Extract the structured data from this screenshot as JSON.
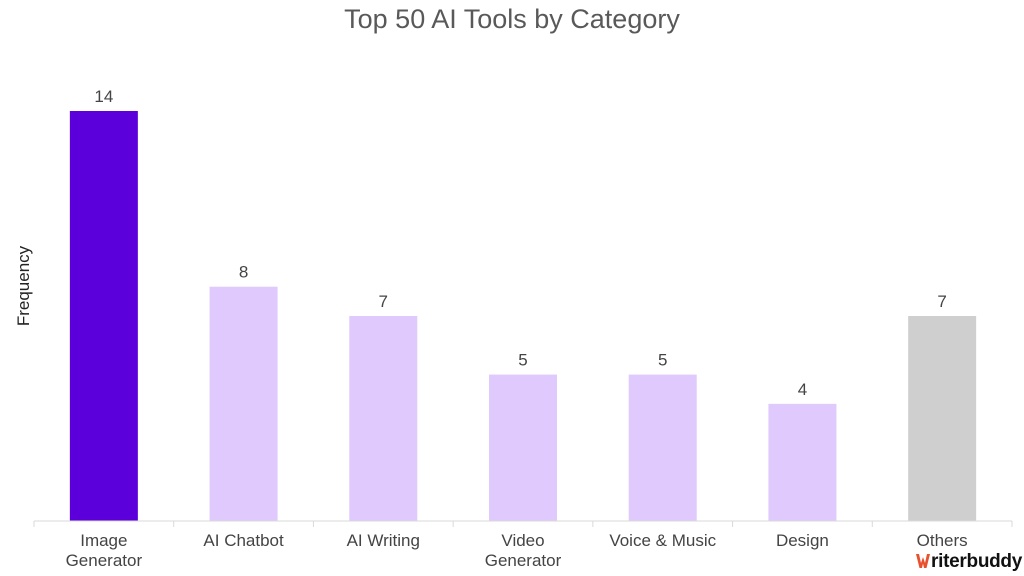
{
  "chart_data": {
    "type": "bar",
    "title": "Top 50 AI Tools by Category",
    "ylabel": "Frequency",
    "xlabel": "",
    "categories": [
      [
        "Image",
        "Generator"
      ],
      [
        "AI Chatbot"
      ],
      [
        "AI Writing"
      ],
      [
        "Video",
        "Generator"
      ],
      [
        "Voice & Music"
      ],
      [
        "Design"
      ],
      [
        "Others"
      ]
    ],
    "values": [
      14,
      8,
      7,
      5,
      5,
      4,
      7
    ],
    "colors": [
      "#5c00db",
      "#dfc9fd",
      "#dfc9fd",
      "#dfc9fd",
      "#dfc9fd",
      "#dfc9fd",
      "#d0cfcf"
    ],
    "ylim": [
      0,
      14
    ],
    "grid": false,
    "legend": "none"
  },
  "brand": {
    "text": "riterbuddy",
    "mark_color": "#e8502e"
  }
}
